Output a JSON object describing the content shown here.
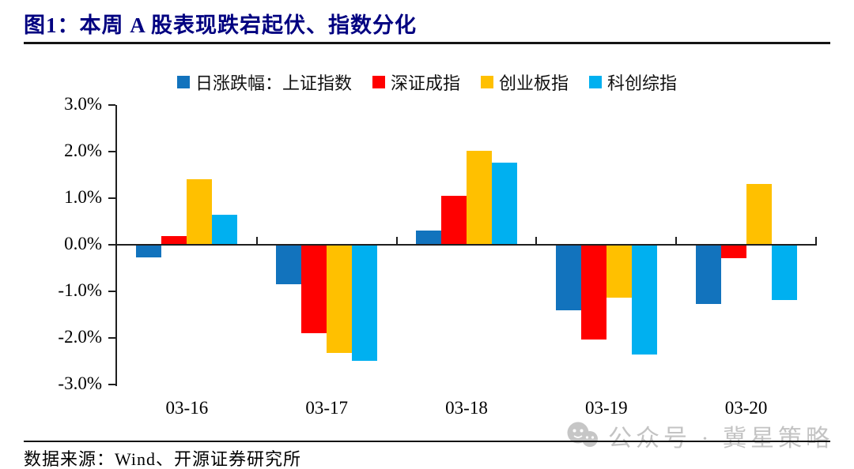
{
  "figure": {
    "title": "图1：本周 A 股表现跌宕起伏、指数分化",
    "source": "数据来源：Wind、开源证券研究所",
    "watermark_text": "公众号 · 冀星策略"
  },
  "chart_data": {
    "type": "bar",
    "title": "本周 A 股表现跌宕起伏、指数分化",
    "categories": [
      "03-16",
      "03-17",
      "03-18",
      "03-19",
      "03-20"
    ],
    "series": [
      {
        "name": "日涨跌幅：上证指数",
        "color": "#1273BD",
        "values": [
          -0.27,
          -0.85,
          0.31,
          -1.4,
          -1.27
        ]
      },
      {
        "name": "深证成指",
        "color": "#FF0000",
        "values": [
          0.18,
          -1.89,
          1.05,
          -2.04,
          -0.28
        ]
      },
      {
        "name": "创业板指",
        "color": "#FFC000",
        "values": [
          1.41,
          -2.32,
          2.02,
          -1.13,
          1.3
        ]
      },
      {
        "name": "科创综指",
        "color": "#00B0F0",
        "values": [
          0.65,
          -2.49,
          1.76,
          -2.36,
          -1.19
        ]
      }
    ],
    "unit": "percent",
    "ylim": [
      -3.0,
      3.0
    ],
    "ytick_values": [
      3,
      2,
      1,
      0,
      -1,
      -2,
      -3
    ],
    "ytick_labels": [
      "3.0%",
      "2.0%",
      "1.0%",
      "0.0%",
      "-1.0%",
      "-2.0%",
      "-3.0%"
    ],
    "grid": false,
    "legend_position": "top"
  },
  "colors": {
    "title_text": "#000080",
    "axis_line": "#1f1f1f",
    "watermark_text": "#c3c3c3"
  }
}
